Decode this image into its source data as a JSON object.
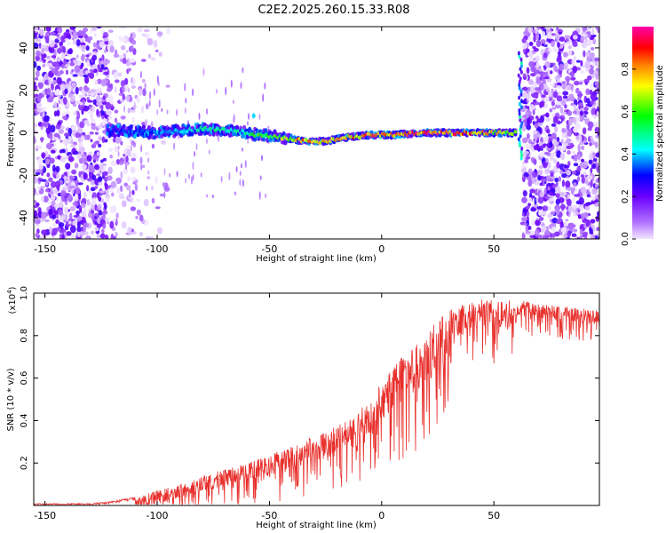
{
  "title": "C2E2.2025.260.15.33.R08",
  "chart_data": [
    {
      "type": "heatmap",
      "title": "C2E2.2025.260.15.33.R08",
      "xlabel": "Height of straight line (km)",
      "ylabel": "Frequency (Hz)",
      "xlim": [
        -155,
        97
      ],
      "ylim": [
        -50,
        50
      ],
      "xticks": [
        -150,
        -100,
        -50,
        0,
        50
      ],
      "yticks": [
        -40,
        -20,
        0,
        20,
        40
      ],
      "colorbar": {
        "label": "Normalized spectral amplitude",
        "range": [
          0,
          1
        ],
        "ticks": [
          0.0,
          0.2,
          0.4,
          0.6,
          0.8
        ],
        "colors": [
          "#f2e6ff",
          "#8000ff",
          "#0000ff",
          "#00ffff",
          "#00ff00",
          "#ffff00",
          "#ff8000",
          "#ff0000",
          "#ff00aa"
        ]
      },
      "ridge": {
        "description": "concentrated signal near 0 Hz",
        "x": [
          -120,
          -100,
          -80,
          -65,
          -55,
          -45,
          -35,
          -25,
          -15,
          -5,
          5,
          20,
          40,
          58
        ],
        "frequency": [
          1,
          0,
          2,
          1,
          -1,
          -2,
          -4,
          -4,
          -2,
          -1,
          -1,
          0,
          0,
          0
        ],
        "amplitude": [
          0.3,
          0.4,
          0.5,
          0.5,
          0.6,
          0.7,
          0.85,
          0.8,
          0.85,
          0.9,
          0.9,
          0.95,
          0.9,
          0.7
        ]
      }
    },
    {
      "type": "line",
      "xlabel": "Height of straight line (km)",
      "ylabel": "SNR (10 * v/v)",
      "y_scale_note": "(x10^4)",
      "y_scale_base": "(x10",
      "y_scale_exp": "4",
      "y_scale_close": ")",
      "xlim": [
        -155,
        97
      ],
      "ylim": [
        0,
        1.0
      ],
      "xticks": [
        -150,
        -100,
        -50,
        0,
        50
      ],
      "yticks": [
        0.2,
        0.4,
        0.6,
        0.8,
        1.0
      ],
      "color": "#e8302c",
      "series": [
        {
          "name": "SNR",
          "x": [
            -155,
            -130,
            -120,
            -110,
            -100,
            -90,
            -80,
            -70,
            -60,
            -50,
            -40,
            -30,
            -20,
            -10,
            0,
            5,
            10,
            20,
            30,
            40,
            50,
            60,
            70,
            80,
            90,
            97
          ],
          "y": [
            0.01,
            0.01,
            0.02,
            0.04,
            0.07,
            0.1,
            0.14,
            0.17,
            0.2,
            0.24,
            0.28,
            0.33,
            0.38,
            0.45,
            0.58,
            0.65,
            0.72,
            0.82,
            0.92,
            0.97,
            0.98,
            0.97,
            0.95,
            0.94,
            0.93,
            0.92
          ]
        }
      ]
    }
  ]
}
